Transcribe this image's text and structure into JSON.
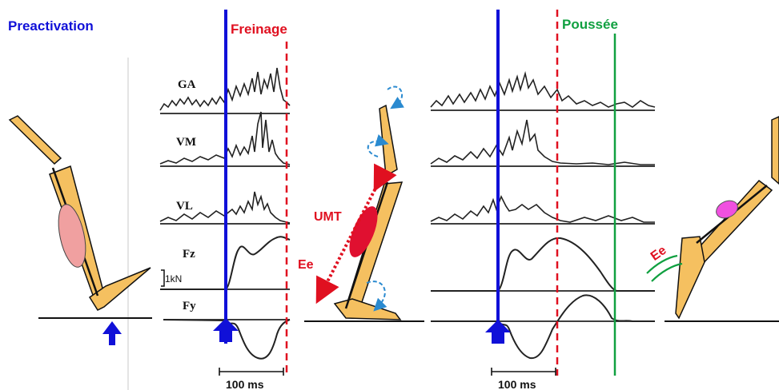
{
  "phases": {
    "preactivation": "Preactivation",
    "freinage": "Freinage",
    "poussee": "Poussée"
  },
  "signals": {
    "ga": "GA",
    "vm": "VM",
    "vl": "VL",
    "fz": "Fz",
    "fy": "Fy",
    "force_scale": "1kN"
  },
  "time_scale": "100 ms",
  "annotations": {
    "umt": "UMT",
    "ee": "Ee"
  },
  "colors": {
    "preactivation": "#1010d8",
    "freinage": "#e01020",
    "poussee": "#10a040",
    "limb": "#f5c060",
    "muscle_pink": "#f0a0a0",
    "muscle_red": "#e01030",
    "muscle_magenta": "#f050e0",
    "rotation_arrow": "#2a8ad0"
  }
}
